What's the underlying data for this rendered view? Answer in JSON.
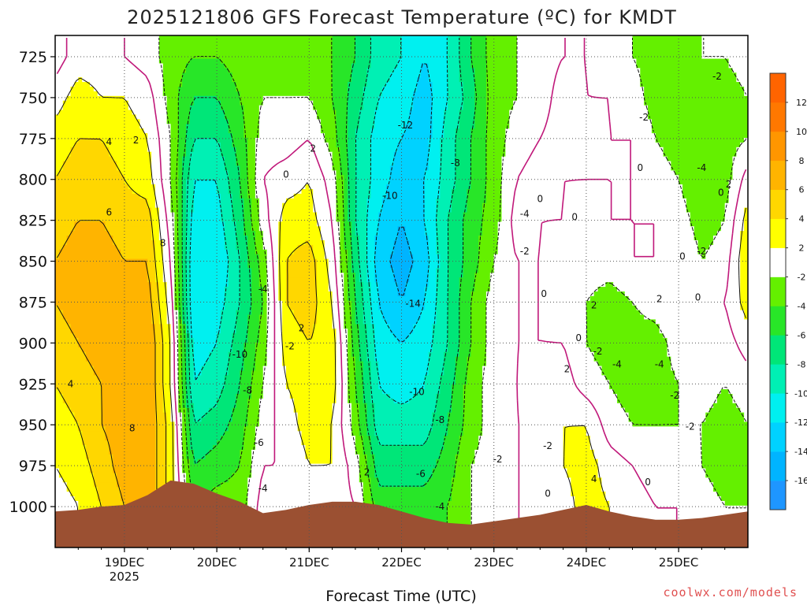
{
  "chart_data": {
    "type": "heatmap",
    "title": "2025121806 GFS Forecast Temperature (ºC) for KMDT",
    "xlabel": "Forecast Time (UTC)",
    "ylabel": "",
    "credit": "coolwx.com/models",
    "y_axis": {
      "label": "",
      "inverted": true,
      "ylim": [
        1025,
        712
      ],
      "ticks": [
        725,
        750,
        775,
        800,
        825,
        850,
        875,
        900,
        925,
        950,
        975,
        1000
      ]
    },
    "x_axis": {
      "xlim_hours": [
        0,
        180
      ],
      "ticks": [
        {
          "label": "19DEC",
          "sub": "2025",
          "hour": 18
        },
        {
          "label": "20DEC",
          "sub": "",
          "hour": 42
        },
        {
          "label": "21DEC",
          "sub": "",
          "hour": 66
        },
        {
          "label": "22DEC",
          "sub": "",
          "hour": 90
        },
        {
          "label": "23DEC",
          "sub": "",
          "hour": 114
        },
        {
          "label": "24DEC",
          "sub": "",
          "hour": 138
        },
        {
          "label": "25DEC",
          "sub": "",
          "hour": 162
        }
      ]
    },
    "grid": true,
    "colorbar": {
      "position": "right",
      "levels": [
        -18,
        -16,
        -14,
        -12,
        -10,
        -8,
        -6,
        -4,
        -2,
        2,
        4,
        6,
        8,
        10,
        12,
        14
      ],
      "labels": [
        -16,
        -14,
        -12,
        -10,
        -8,
        -6,
        -4,
        -2,
        2,
        4,
        6,
        8,
        10,
        12
      ],
      "colors": [
        "#1e96ff",
        "#00b4ff",
        "#00d2ff",
        "#00f0f0",
        "#00f0b4",
        "#00e678",
        "#28e628",
        "#64f000",
        "#ffffff",
        "#ffff00",
        "#ffd700",
        "#ffb400",
        "#ff9600",
        "#ff7800",
        "#ff6400"
      ]
    },
    "terrain_color": "#9b5032",
    "hours": [
      0,
      6,
      12,
      18,
      24,
      30,
      36,
      42,
      48,
      54,
      60,
      66,
      72,
      78,
      84,
      90,
      96,
      102,
      108,
      114,
      120,
      126,
      132,
      138,
      144,
      150,
      156,
      162,
      168,
      174,
      180
    ],
    "surface_pressure_hpa": [
      1003,
      1002,
      1000,
      999,
      993,
      984,
      986,
      992,
      997,
      1004,
      1002,
      999,
      997,
      997,
      999,
      1003,
      1007,
      1010,
      1011,
      1009,
      1007,
      1005,
      1002,
      999,
      1003,
      1006,
      1008,
      1008,
      1007,
      1005,
      1003
    ],
    "temperature_profiles": {
      "levels_hpa": [
        725,
        750,
        775,
        800,
        825,
        850,
        875,
        900,
        925,
        950,
        975,
        1000
      ],
      "series": [
        {
          "hour": 0,
          "values": [
            -1,
            1,
            3,
            4,
            5,
            6,
            6,
            5,
            4,
            3,
            2,
            1
          ]
        },
        {
          "hour": 6,
          "values": [
            1,
            3,
            4,
            5,
            6,
            7,
            7,
            6,
            5,
            4,
            3,
            2
          ]
        },
        {
          "hour": 12,
          "values": [
            1,
            2,
            4,
            5,
            6,
            7,
            7,
            7,
            6,
            6,
            5,
            4
          ]
        },
        {
          "hour": 18,
          "values": [
            0,
            2,
            3,
            4,
            5,
            6,
            7,
            7,
            7,
            7,
            7,
            6
          ]
        },
        {
          "hour": 24,
          "values": [
            -1,
            1,
            2,
            3,
            5,
            6,
            7,
            8,
            8,
            8,
            8,
            8
          ]
        },
        {
          "hour": 30,
          "values": [
            -3,
            -3,
            -2,
            -2,
            -1,
            0,
            1,
            2,
            2,
            3,
            3,
            3
          ]
        },
        {
          "hour": 36,
          "values": [
            -4,
            -6,
            -8,
            -10,
            -11,
            -12,
            -12,
            -11,
            -10,
            -8,
            -6,
            -4
          ]
        },
        {
          "hour": 42,
          "values": [
            -4,
            -6,
            -8,
            -10,
            -11,
            -12,
            -11,
            -10,
            -9,
            -7,
            -5,
            -3
          ]
        },
        {
          "hour": 48,
          "values": [
            -3,
            -4,
            -5,
            -6,
            -7,
            -8,
            -8,
            -7,
            -6,
            -5,
            -4,
            -3
          ]
        },
        {
          "hour": 54,
          "values": [
            -3,
            -2,
            -1,
            0,
            -1,
            -3,
            -4,
            -3,
            -2,
            -1,
            0,
            1
          ]
        },
        {
          "hour": 60,
          "values": [
            -3,
            -2,
            -1,
            1,
            3,
            4,
            4,
            3,
            2,
            1,
            0,
            0
          ]
        },
        {
          "hour": 66,
          "values": [
            -3,
            -2,
            0,
            2,
            3,
            5,
            5,
            4,
            3,
            3,
            2,
            1
          ]
        },
        {
          "hour": 72,
          "values": [
            -4,
            -4,
            -3,
            -1,
            0,
            1,
            2,
            3,
            3,
            2,
            2,
            1
          ]
        },
        {
          "hour": 78,
          "values": [
            -6,
            -7,
            -8,
            -8,
            -8,
            -7,
            -6,
            -5,
            -4,
            -3,
            -1,
            0
          ]
        },
        {
          "hour": 84,
          "values": [
            -9,
            -10,
            -11,
            -11,
            -12,
            -13,
            -12,
            -11,
            -10,
            -9,
            -7,
            -5
          ]
        },
        {
          "hour": 90,
          "values": [
            -10,
            -11,
            -12,
            -13,
            -14,
            -15,
            -14,
            -12,
            -11,
            -9,
            -7,
            -5
          ]
        },
        {
          "hour": 96,
          "values": [
            -12,
            -13,
            -13,
            -12,
            -12,
            -13,
            -12,
            -11,
            -10,
            -9,
            -7,
            -5
          ]
        },
        {
          "hour": 102,
          "values": [
            -10,
            -10,
            -9,
            -9,
            -8,
            -8,
            -8,
            -8,
            -7,
            -6,
            -5,
            -4
          ]
        },
        {
          "hour": 108,
          "values": [
            -6,
            -7,
            -6,
            -6,
            -5,
            -5,
            -4,
            -4,
            -3,
            -3,
            -2,
            -2
          ]
        },
        {
          "hour": 114,
          "values": [
            -3,
            -3,
            -3,
            -3,
            -3,
            -2,
            -1,
            -1,
            -1,
            -1,
            -1,
            -1
          ]
        },
        {
          "hour": 120,
          "values": [
            -2,
            -2,
            -1,
            0,
            1,
            0,
            0,
            0,
            0,
            0,
            0,
            0
          ]
        },
        {
          "hour": 126,
          "values": [
            -1,
            -1,
            0,
            1,
            0,
            0,
            0,
            0,
            1,
            0,
            0,
            0
          ]
        },
        {
          "hour": 132,
          "values": [
            0,
            1,
            1,
            0,
            0,
            -1,
            -1,
            0,
            1,
            2,
            2,
            1
          ]
        },
        {
          "hour": 138,
          "values": [
            0,
            0,
            1,
            0,
            -1,
            -1,
            -2,
            -2,
            -1,
            2,
            3,
            3
          ]
        },
        {
          "hour": 144,
          "values": [
            -1,
            0,
            0,
            0,
            0,
            -1,
            -3,
            -3,
            -2,
            -1,
            1,
            2
          ]
        },
        {
          "hour": 150,
          "values": [
            -2,
            -1,
            0,
            0,
            0,
            0,
            -2,
            -3,
            -3,
            -2,
            0,
            1
          ]
        },
        {
          "hour": 156,
          "values": [
            -3,
            -3,
            -2,
            -1,
            0,
            0,
            -1,
            -3,
            -3,
            -2,
            -1,
            0
          ]
        },
        {
          "hour": 162,
          "values": [
            -3,
            -3,
            -3,
            -2,
            -1,
            0,
            0,
            -1,
            -2,
            -2,
            -1,
            0
          ]
        },
        {
          "hour": 168,
          "values": [
            -2,
            -3,
            -4,
            -4,
            -3,
            -2,
            -1,
            -1,
            -1,
            -2,
            -2,
            -1
          ]
        },
        {
          "hour": 174,
          "values": [
            -2,
            -3,
            -3,
            -3,
            -2,
            -1,
            0,
            -1,
            -2,
            -3,
            -3,
            -2
          ]
        },
        {
          "hour": 180,
          "values": [
            -1,
            -2,
            -2,
            1,
            3,
            4,
            3,
            1,
            -1,
            -2,
            -3,
            -2
          ]
        }
      ]
    },
    "contour_labels": [
      {
        "text": "4",
        "hour": 14,
        "p": 777
      },
      {
        "text": "2",
        "hour": 21,
        "p": 776
      },
      {
        "text": "6",
        "hour": 14,
        "p": 820
      },
      {
        "text": "8",
        "hour": 28,
        "p": 839
      },
      {
        "text": "4",
        "hour": 4,
        "p": 925
      },
      {
        "text": "8",
        "hour": 20,
        "p": 952
      },
      {
        "text": "2",
        "hour": 67,
        "p": 781
      },
      {
        "text": "0",
        "hour": 60,
        "p": 797
      },
      {
        "text": "-2",
        "hour": 61,
        "p": 902
      },
      {
        "text": "2",
        "hour": 64,
        "p": 891
      },
      {
        "text": "-4",
        "hour": 54,
        "p": 867
      },
      {
        "text": "-10",
        "hour": 48,
        "p": 907
      },
      {
        "text": "-8",
        "hour": 50,
        "p": 929
      },
      {
        "text": "-6",
        "hour": 53,
        "p": 961
      },
      {
        "text": "-4",
        "hour": 54,
        "p": 989
      },
      {
        "text": "2",
        "hour": 81,
        "p": 979
      },
      {
        "text": "-12",
        "hour": 91,
        "p": 767
      },
      {
        "text": "-8",
        "hour": 104,
        "p": 790
      },
      {
        "text": "-10",
        "hour": 87,
        "p": 810
      },
      {
        "text": "-14",
        "hour": 93,
        "p": 876
      },
      {
        "text": "-10",
        "hour": 94,
        "p": 930
      },
      {
        "text": "-8",
        "hour": 100,
        "p": 947
      },
      {
        "text": "-6",
        "hour": 95,
        "p": 980
      },
      {
        "text": "-4",
        "hour": 100,
        "p": 1000
      },
      {
        "text": "-4",
        "hour": 122,
        "p": 821
      },
      {
        "text": "-2",
        "hour": 122,
        "p": 844
      },
      {
        "text": "0",
        "hour": 126,
        "p": 812
      },
      {
        "text": "0",
        "hour": 135,
        "p": 823
      },
      {
        "text": "0",
        "hour": 127,
        "p": 870
      },
      {
        "text": "-2",
        "hour": 128,
        "p": 963
      },
      {
        "text": "-2",
        "hour": 115,
        "p": 971
      },
      {
        "text": "0",
        "hour": 128,
        "p": 992
      },
      {
        "text": "2",
        "hour": 133,
        "p": 916
      },
      {
        "text": "0",
        "hour": 136,
        "p": 897
      },
      {
        "text": "2",
        "hour": 140,
        "p": 877
      },
      {
        "text": "-2",
        "hour": 141,
        "p": 905
      },
      {
        "text": "-4",
        "hour": 146,
        "p": 913
      },
      {
        "text": "4",
        "hour": 140,
        "p": 983
      },
      {
        "text": "2",
        "hour": 157,
        "p": 873
      },
      {
        "text": "-4",
        "hour": 157,
        "p": 913
      },
      {
        "text": "-2",
        "hour": 161,
        "p": 932
      },
      {
        "text": "0",
        "hour": 154,
        "p": 985
      },
      {
        "text": "-2",
        "hour": 165,
        "p": 951
      },
      {
        "text": "0",
        "hour": 167,
        "p": 872
      },
      {
        "text": "0",
        "hour": 163,
        "p": 847
      },
      {
        "text": "-2",
        "hour": 168,
        "p": 844
      },
      {
        "text": "-2",
        "hour": 153,
        "p": 762
      },
      {
        "text": "0",
        "hour": 152,
        "p": 793
      },
      {
        "text": "-4",
        "hour": 168,
        "p": 793
      },
      {
        "text": "-2",
        "hour": 172,
        "p": 737
      },
      {
        "text": "0",
        "hour": 173,
        "p": 808
      },
      {
        "text": "2",
        "hour": 175,
        "p": 803
      }
    ]
  }
}
